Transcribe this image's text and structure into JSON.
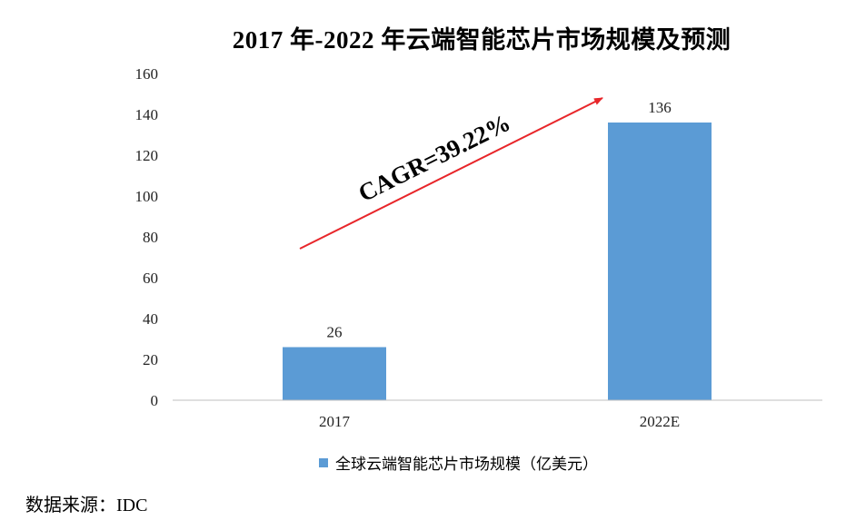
{
  "chart_data": {
    "type": "bar",
    "title": "2017 年-2022 年云端智能芯片市场规模及预测",
    "categories": [
      "2017",
      "2022E"
    ],
    "series": [
      {
        "name": "全球云端智能芯片市场规模（亿美元）",
        "values": [
          26,
          136
        ],
        "color": "#5b9bd5"
      }
    ],
    "data_labels": [
      "26",
      "136"
    ],
    "ylim": [
      0,
      160
    ],
    "yticks": [
      0,
      20,
      40,
      60,
      80,
      100,
      120,
      140,
      160
    ],
    "grid": false,
    "legend_position": "bottom",
    "annotation": {
      "text": "CAGR=39.22%",
      "arrow_color": "#e8262a"
    }
  },
  "source_note": "数据来源：IDC"
}
